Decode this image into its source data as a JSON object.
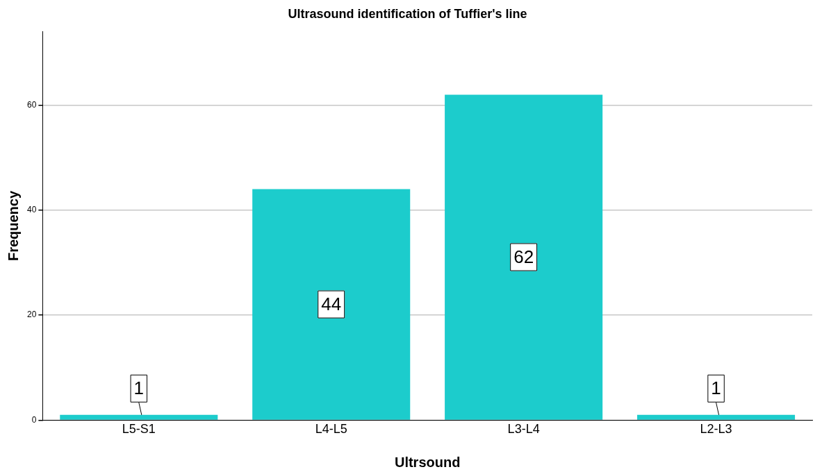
{
  "chart_data": {
    "type": "bar",
    "title": "Ultrasound identification of Tuffier's line",
    "xlabel": "Ultrsound",
    "ylabel": "Frequency",
    "categories": [
      "L5-S1",
      "L4-L5",
      "L3-L4",
      "L2-L3"
    ],
    "values": [
      1,
      44,
      62,
      1
    ],
    "color": "#1ccccc",
    "ylim": [
      0,
      74
    ],
    "yticks": [
      0,
      20,
      40,
      60
    ],
    "grid": "y",
    "legend": false,
    "data_labels": true
  }
}
